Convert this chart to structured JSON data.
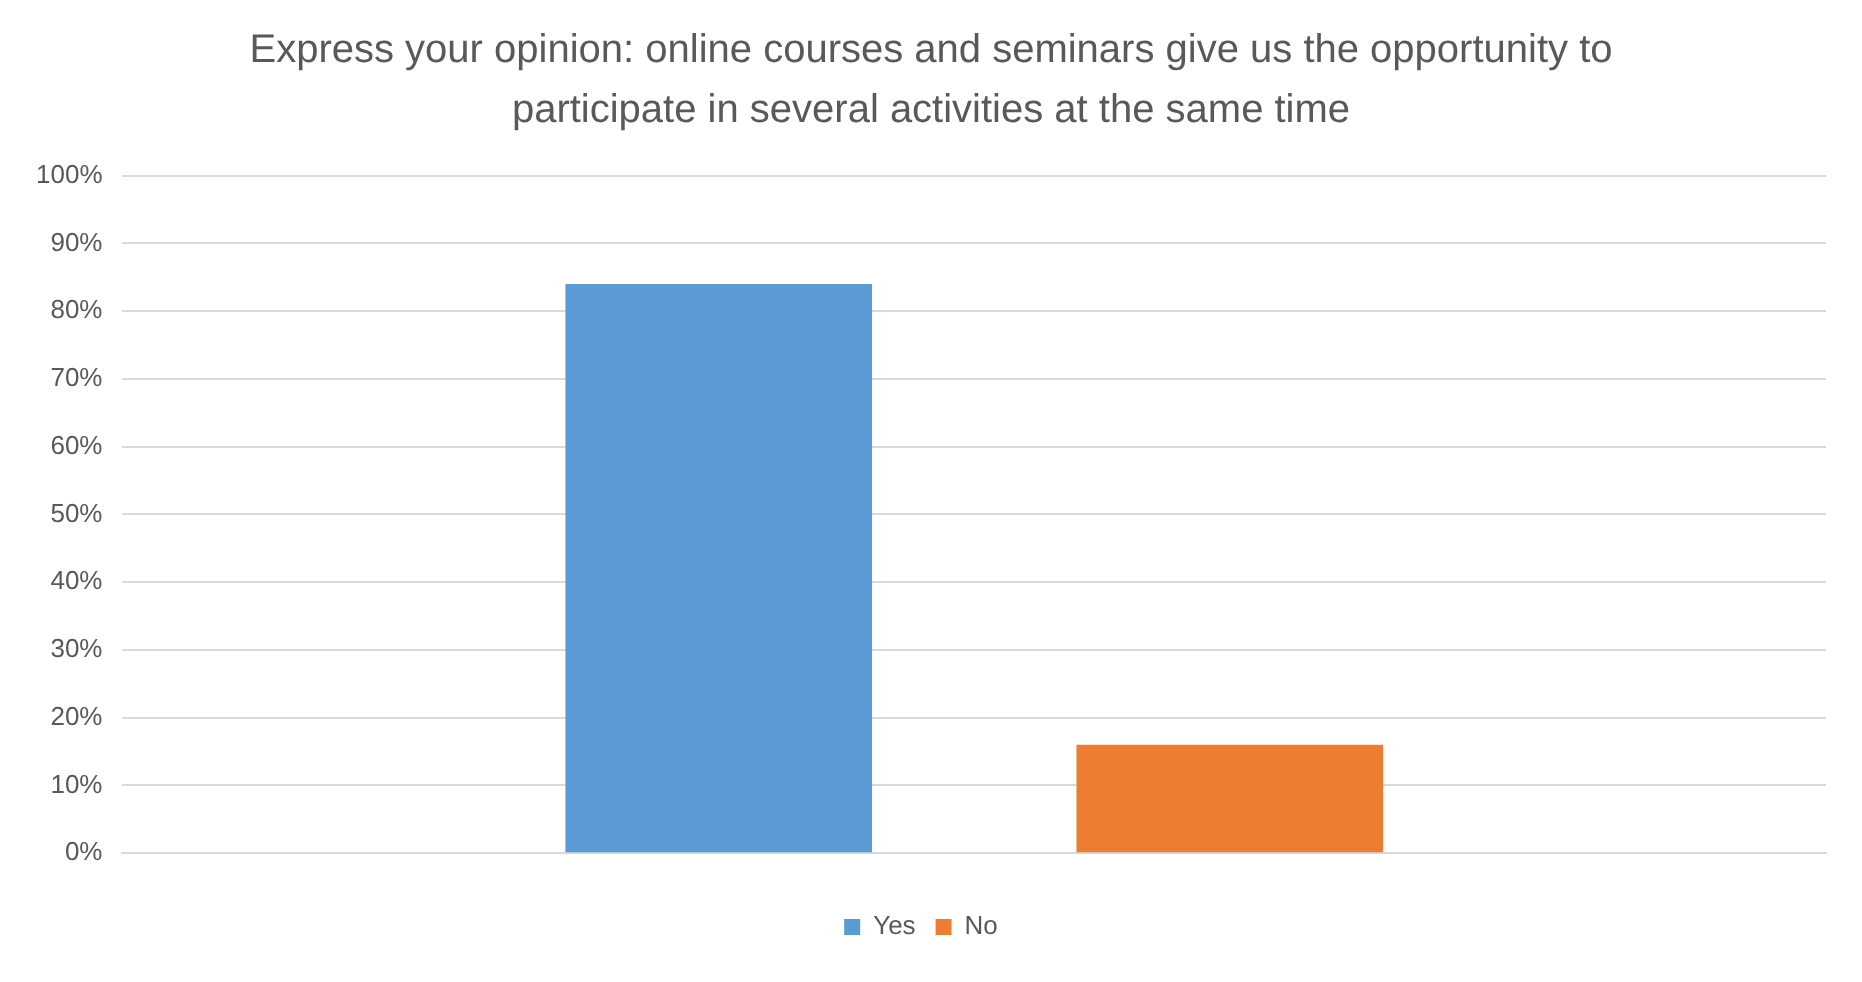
{
  "chart_data": {
    "type": "bar",
    "title": "Express your opinion: online courses and seminars give us the opportunity to participate in several activities at the same time",
    "categories": [
      null
    ],
    "series": [
      {
        "name": "Yes",
        "color": "#5b9bd5",
        "values": [
          84
        ]
      },
      {
        "name": "No",
        "color": "#ed7d31",
        "values": [
          16
        ]
      }
    ],
    "ylim": [
      0,
      100
    ],
    "yticks": [
      {
        "value": 0,
        "label": "0%"
      },
      {
        "value": 10,
        "label": "10%"
      },
      {
        "value": 20,
        "label": "20%"
      },
      {
        "value": 30,
        "label": "30%"
      },
      {
        "value": 40,
        "label": "40%"
      },
      {
        "value": 50,
        "label": "50%"
      },
      {
        "value": 60,
        "label": "60%"
      },
      {
        "value": 70,
        "label": "70%"
      },
      {
        "value": 80,
        "label": "80%"
      },
      {
        "value": 90,
        "label": "90%"
      },
      {
        "value": 100,
        "label": "100%"
      }
    ],
    "grid": "y",
    "legend": "bottom"
  }
}
